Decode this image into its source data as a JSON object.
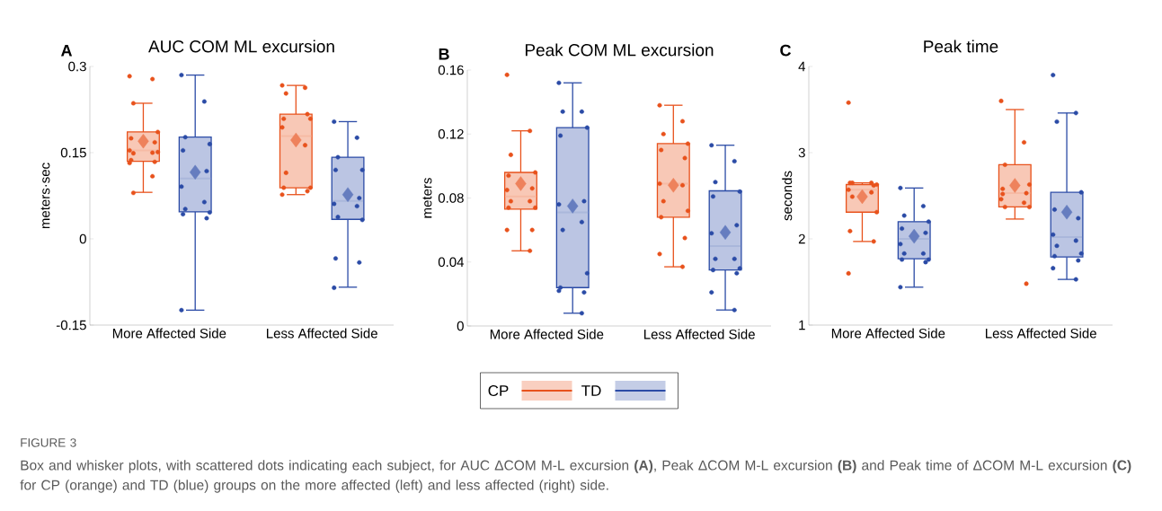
{
  "chart_data": [
    {
      "type": "box",
      "title": "AUC COM ML excursion",
      "ylabel": "meters·sec",
      "annotations": [
        "A"
      ],
      "categories": [
        "More Affected Side",
        "Less Affected Side"
      ],
      "ylim": [
        -0.15,
        0.3
      ],
      "yticks": [
        -0.15,
        0,
        0.15,
        0.3
      ],
      "marker": "circle",
      "series": [
        {
          "color": "#e8521c",
          "boxes": [
            {
              "low": 0.081,
              "q1": 0.135,
              "median": 0.154,
              "q3": 0.186,
              "high": 0.236,
              "mean": 0.17
            },
            {
              "low": 0.077,
              "q1": 0.089,
              "median": 0.179,
              "q3": 0.217,
              "high": 0.267,
              "mean": 0.172
            }
          ]
        },
        {
          "color": "#2b4ba6",
          "boxes": [
            {
              "low": -0.124,
              "q1": 0.047,
              "median": 0.105,
              "q3": 0.177,
              "high": 0.285,
              "mean": 0.116
            },
            {
              "low": -0.084,
              "q1": 0.034,
              "median": 0.066,
              "q3": 0.142,
              "high": 0.204,
              "mean": 0.077
            }
          ]
        },
        {
          "type": "scatter",
          "color": "#e8521c",
          "x": [
            "More Affected Side",
            "More Affected Side",
            "More Affected Side",
            "More Affected Side",
            "More Affected Side",
            "More Affected Side",
            "More Affected Side",
            "More Affected Side",
            "More Affected Side",
            "More Affected Side",
            "More Affected Side",
            "More Affected Side",
            "More Affected Side",
            "More Affected Side",
            "More Affected Side",
            "Less Affected Side",
            "Less Affected Side",
            "Less Affected Side",
            "Less Affected Side",
            "Less Affected Side",
            "Less Affected Side",
            "Less Affected Side",
            "Less Affected Side",
            "Less Affected Side",
            "Less Affected Side",
            "Less Affected Side",
            "Less Affected Side",
            "Less Affected Side"
          ],
          "values": [
            0.283,
            0.278,
            0.236,
            0.186,
            0.175,
            0.168,
            0.154,
            0.15,
            0.149,
            0.151,
            0.137,
            0.134,
            0.132,
            0.109,
            0.08,
            0.267,
            0.263,
            0.253,
            0.209,
            0.209,
            0.217,
            0.194,
            0.163,
            0.115,
            0.089,
            0.089,
            0.083,
            0.077
          ]
        },
        {
          "type": "scatter",
          "color": "#2b4ba6",
          "x": [
            "More Affected Side",
            "More Affected Side",
            "More Affected Side",
            "More Affected Side",
            "More Affected Side",
            "More Affected Side",
            "More Affected Side",
            "More Affected Side",
            "More Affected Side",
            "More Affected Side",
            "More Affected Side",
            "More Affected Side",
            "More Affected Side",
            "Less Affected Side",
            "Less Affected Side",
            "Less Affected Side",
            "Less Affected Side",
            "Less Affected Side",
            "Less Affected Side",
            "Less Affected Side",
            "Less Affected Side",
            "Less Affected Side",
            "Less Affected Side",
            "Less Affected Side",
            "Less Affected Side",
            "Less Affected Side"
          ],
          "values": [
            0.285,
            0.239,
            0.177,
            0.165,
            0.154,
            0.118,
            0.091,
            0.064,
            0.052,
            0.046,
            0.043,
            0.036,
            -0.124,
            0.204,
            0.176,
            0.142,
            0.12,
            0.12,
            0.071,
            0.061,
            0.057,
            0.038,
            0.033,
            -0.034,
            -0.041,
            -0.085
          ]
        }
      ]
    },
    {
      "type": "box",
      "title": "Peak COM ML excursion",
      "ylabel": "meters",
      "annotations": [
        "B",
        "FIGURE 3",
        "Box and whisker plots, with scattered dots indicating each subject, for AUC ΔCOM M-L excursion **(A)**, Peak ΔCOM M-L excursion **(B)** and Peak time of ΔCOM M-L excursion **(C)** for CP (orange) and TD (blue) groups on the more affected (left) and less affected (right) side."
      ],
      "categories": [
        "More Affected Side",
        "Less Affected Side"
      ],
      "ylim": [
        0,
        0.16
      ],
      "yticks": [
        0,
        0.04,
        0.08,
        0.12,
        0.16
      ],
      "marker": "circle",
      "legend": "bottom",
      "series": [
        {
          "name": "CP",
          "color": "#e8521c",
          "boxes": [
            {
              "low": 0.047,
              "q1": 0.073,
              "median": 0.081,
              "q3": 0.096,
              "high": 0.122,
              "mean": 0.089
            },
            {
              "low": 0.037,
              "q1": 0.068,
              "median": 0.089,
              "q3": 0.114,
              "high": 0.138,
              "mean": 0.088
            }
          ]
        },
        {
          "name": "TD",
          "color": "#2b4ba6",
          "boxes": [
            {
              "low": 0.008,
              "q1": 0.024,
              "median": 0.071,
              "q3": 0.124,
              "high": 0.152,
              "mean": 0.075
            },
            {
              "low": 0.01,
              "q1": 0.035,
              "median": 0.05,
              "q3": 0.0845,
              "high": 0.113,
              "mean": 0.0585
            }
          ]
        },
        {
          "type": "scatter",
          "color": "#e8521c",
          "x": [
            "More Affected Side",
            "More Affected Side",
            "More Affected Side",
            "More Affected Side",
            "More Affected Side",
            "More Affected Side",
            "More Affected Side",
            "More Affected Side",
            "More Affected Side",
            "More Affected Side",
            "More Affected Side",
            "More Affected Side",
            "More Affected Side",
            "More Affected Side",
            "Less Affected Side",
            "Less Affected Side",
            "Less Affected Side",
            "Less Affected Side",
            "Less Affected Side",
            "Less Affected Side",
            "Less Affected Side",
            "Less Affected Side",
            "Less Affected Side",
            "Less Affected Side",
            "Less Affected Side",
            "Less Affected Side",
            "Less Affected Side",
            "Less Affected Side"
          ],
          "values": [
            0.157,
            0.122,
            0.107,
            0.096,
            0.094,
            0.086,
            0.085,
            0.078,
            0.078,
            0.074,
            0.074,
            0.06,
            0.06,
            0.047,
            0.138,
            0.128,
            0.12,
            0.114,
            0.11,
            0.105,
            0.089,
            0.088,
            0.078,
            0.072,
            0.068,
            0.055,
            0.045,
            0.037
          ]
        },
        {
          "type": "scatter",
          "color": "#2b4ba6",
          "x": [
            "More Affected Side",
            "More Affected Side",
            "More Affected Side",
            "More Affected Side",
            "More Affected Side",
            "More Affected Side",
            "More Affected Side",
            "More Affected Side",
            "More Affected Side",
            "More Affected Side",
            "More Affected Side",
            "More Affected Side",
            "More Affected Side",
            "More Affected Side",
            "Less Affected Side",
            "Less Affected Side",
            "Less Affected Side",
            "Less Affected Side",
            "Less Affected Side",
            "Less Affected Side",
            "Less Affected Side",
            "Less Affected Side",
            "Less Affected Side",
            "Less Affected Side",
            "Less Affected Side",
            "Less Affected Side",
            "Less Affected Side",
            "Less Affected Side"
          ],
          "values": [
            0.152,
            0.134,
            0.134,
            0.124,
            0.119,
            0.078,
            0.076,
            0.065,
            0.06,
            0.033,
            0.024,
            0.021,
            0.022,
            0.008,
            0.113,
            0.103,
            0.09,
            0.084,
            0.081,
            0.063,
            0.058,
            0.042,
            0.042,
            0.036,
            0.035,
            0.033,
            0.021,
            0.01
          ]
        }
      ]
    },
    {
      "type": "box",
      "title": "Peak time",
      "ylabel": "seconds",
      "annotations": [
        "C"
      ],
      "categories": [
        "More Affected Side",
        "Less Affected Side"
      ],
      "ylim": [
        1,
        4
      ],
      "yticks": [
        1,
        2,
        3,
        4
      ],
      "marker": "circle",
      "series": [
        {
          "color": "#e8521c",
          "boxes": [
            {
              "low": 1.97,
              "q1": 2.31,
              "median": 2.57,
              "q3": 2.63,
              "high": 2.65,
              "mean": 2.49
            },
            {
              "low": 2.23,
              "q1": 2.37,
              "median": 2.53,
              "q3": 2.86,
              "high": 3.5,
              "mean": 2.62
            }
          ]
        },
        {
          "color": "#2b4ba6",
          "boxes": [
            {
              "low": 1.44,
              "q1": 1.77,
              "median": 2.0,
              "q3": 2.2,
              "high": 2.59,
              "mean": 2.03
            },
            {
              "low": 1.53,
              "q1": 1.79,
              "median": 2.02,
              "q3": 2.54,
              "high": 3.46,
              "mean": 2.31
            }
          ]
        },
        {
          "type": "scatter",
          "color": "#e8521c",
          "x": [
            "More Affected Side",
            "More Affected Side",
            "More Affected Side",
            "More Affected Side",
            "More Affected Side",
            "More Affected Side",
            "More Affected Side",
            "More Affected Side",
            "More Affected Side",
            "More Affected Side",
            "More Affected Side",
            "More Affected Side",
            "More Affected Side",
            "Less Affected Side",
            "Less Affected Side",
            "Less Affected Side",
            "Less Affected Side",
            "Less Affected Side",
            "Less Affected Side",
            "Less Affected Side",
            "Less Affected Side",
            "Less Affected Side",
            "Less Affected Side",
            "Less Affected Side",
            "Less Affected Side"
          ],
          "values": [
            3.58,
            2.65,
            2.65,
            2.63,
            2.65,
            2.62,
            2.57,
            2.54,
            2.49,
            2.31,
            2.09,
            1.97,
            1.6,
            3.6,
            3.12,
            2.86,
            2.63,
            2.58,
            2.53,
            2.46,
            2.42,
            2.37,
            2.37,
            2.52,
            1.48
          ]
        },
        {
          "type": "scatter",
          "color": "#2b4ba6",
          "x": [
            "More Affected Side",
            "More Affected Side",
            "More Affected Side",
            "More Affected Side",
            "More Affected Side",
            "More Affected Side",
            "More Affected Side",
            "More Affected Side",
            "More Affected Side",
            "More Affected Side",
            "More Affected Side",
            "More Affected Side",
            "More Affected Side",
            "Less Affected Side",
            "Less Affected Side",
            "Less Affected Side",
            "Less Affected Side",
            "Less Affected Side",
            "Less Affected Side",
            "Less Affected Side",
            "Less Affected Side",
            "Less Affected Side",
            "Less Affected Side",
            "Less Affected Side",
            "Less Affected Side",
            "Less Affected Side",
            "Less Affected Side"
          ],
          "values": [
            2.59,
            2.38,
            2.27,
            2.2,
            2.12,
            2.07,
            1.94,
            1.83,
            1.83,
            1.76,
            1.76,
            1.73,
            1.44,
            3.9,
            3.46,
            3.36,
            2.54,
            2.34,
            2.24,
            2.05,
            1.98,
            1.92,
            1.83,
            1.8,
            1.75,
            1.66,
            1.53
          ]
        }
      ]
    }
  ]
}
